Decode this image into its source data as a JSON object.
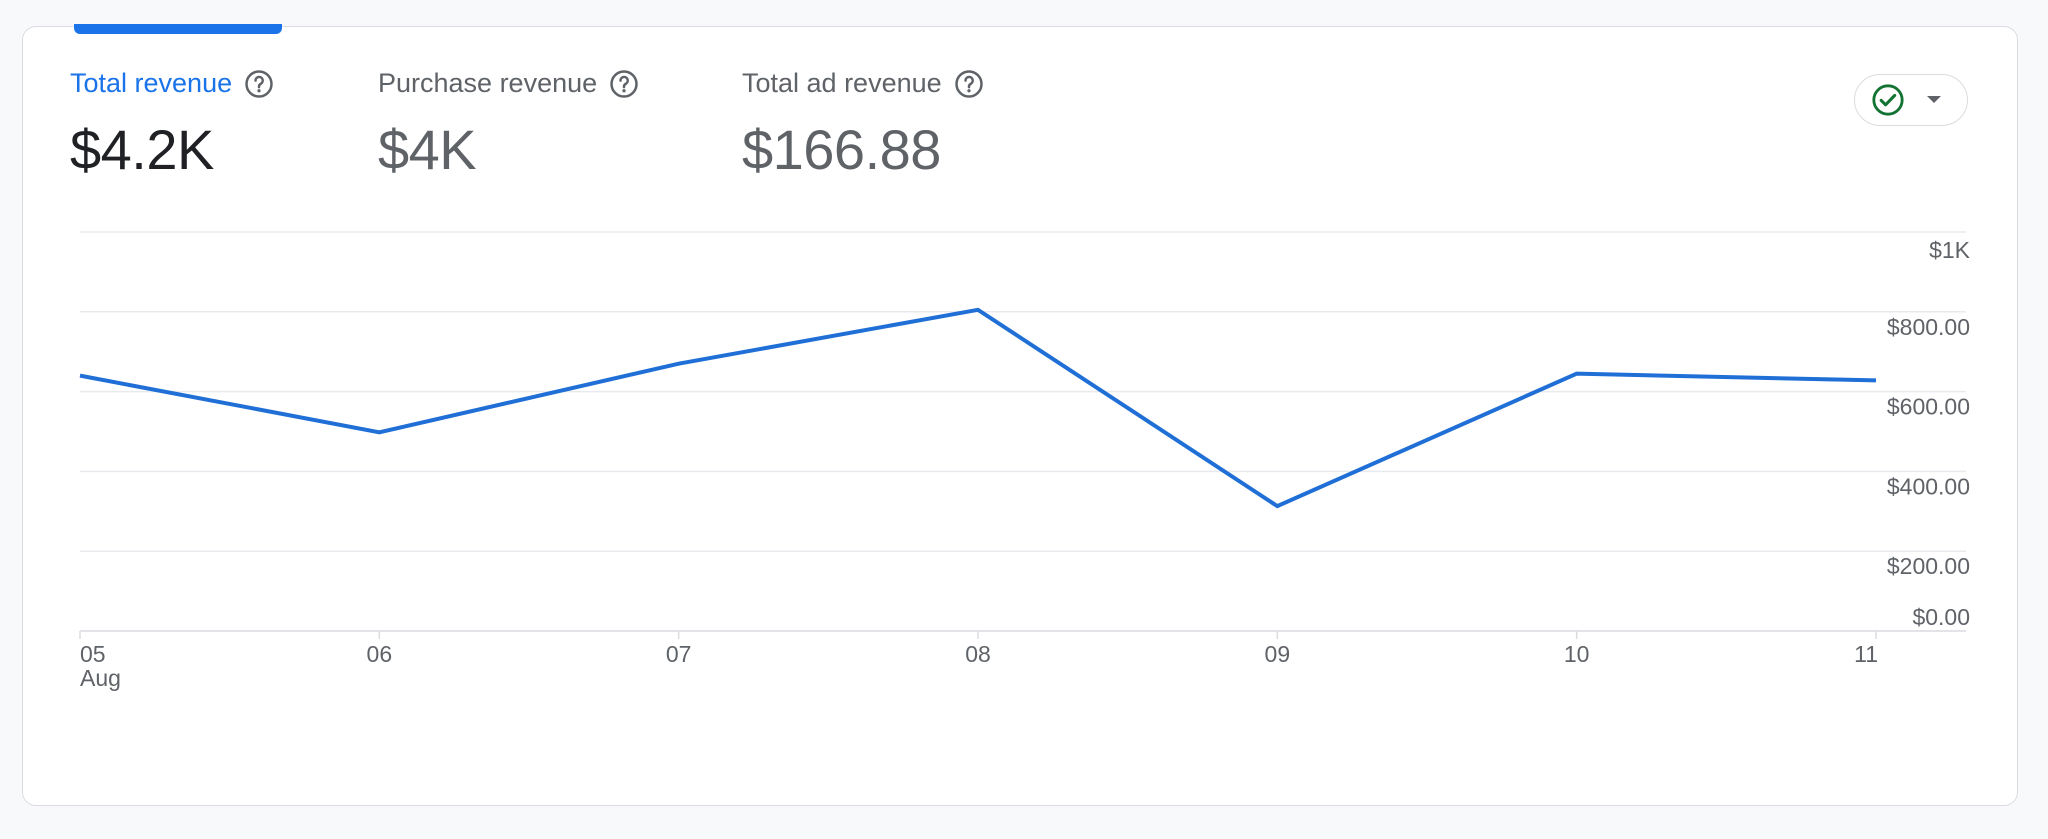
{
  "metrics": [
    {
      "label": "Total revenue",
      "value": "$4.2K",
      "active": true
    },
    {
      "label": "Purchase revenue",
      "value": "$4K",
      "active": false
    },
    {
      "label": "Total ad revenue",
      "value": "$166.88",
      "active": false
    }
  ],
  "status_button": {
    "icon": "check-circle-icon",
    "caret": "caret-down-icon"
  },
  "colors": {
    "accent": "#1a73e8",
    "line": "#1f6fd6",
    "status_ok": "#137333"
  },
  "chart_data": {
    "type": "line",
    "x": [
      "05",
      "06",
      "07",
      "08",
      "09",
      "10",
      "11"
    ],
    "x_sublabels": [
      "Aug",
      "",
      "",
      "",
      "",
      "",
      ""
    ],
    "series": [
      {
        "values": [
          640,
          498,
          670,
          805,
          313,
          645,
          628
        ]
      }
    ],
    "y_ticks": [
      {
        "value": 0,
        "label": "$0.00"
      },
      {
        "value": 200,
        "label": "$200.00"
      },
      {
        "value": 400,
        "label": "$400.00"
      },
      {
        "value": 600,
        "label": "$600.00"
      },
      {
        "value": 800,
        "label": "$800.00"
      },
      {
        "value": 1000,
        "label": "$1K"
      }
    ],
    "ylim": [
      0,
      1000
    ],
    "grid": true,
    "y_axis_position": "right"
  }
}
